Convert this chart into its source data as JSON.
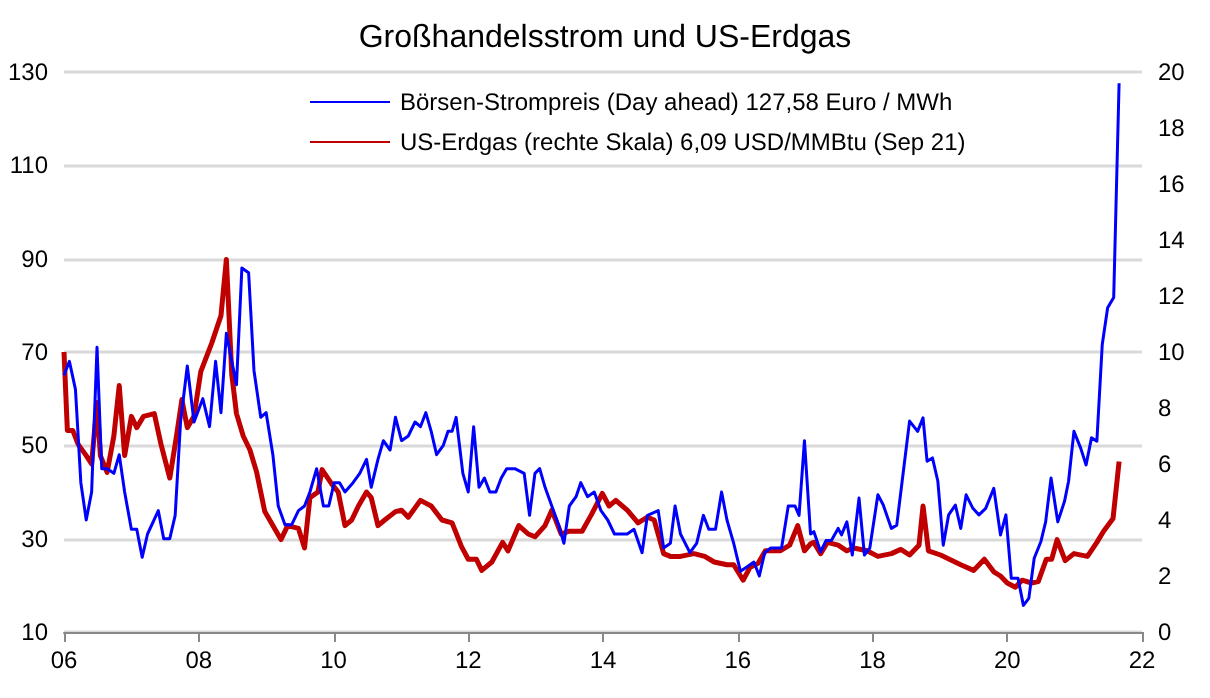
{
  "chart_data": {
    "type": "line",
    "title": "Großhandelsstrom und US-Erdgas",
    "xlim": [
      2006,
      2022
    ],
    "xticks": [
      {
        "value": 2006,
        "label": "06"
      },
      {
        "value": 2008,
        "label": "08"
      },
      {
        "value": 2010,
        "label": "10"
      },
      {
        "value": 2012,
        "label": "12"
      },
      {
        "value": 2014,
        "label": "14"
      },
      {
        "value": 2016,
        "label": "16"
      },
      {
        "value": 2018,
        "label": "18"
      },
      {
        "value": 2020,
        "label": "20"
      },
      {
        "value": 2022,
        "label": "22"
      }
    ],
    "ylim": [
      10,
      130
    ],
    "yticks": [
      10,
      30,
      50,
      70,
      90,
      110,
      130
    ],
    "y2lim": [
      0,
      20
    ],
    "y2ticks": [
      0,
      2,
      4,
      6,
      8,
      10,
      12,
      14,
      16,
      18,
      20
    ],
    "grid": "y",
    "legend": "top",
    "marker": "none",
    "line_style": "solid",
    "series": [
      {
        "name": "Börsen-Strompreis (Day ahead) 127,58 Euro / MWh",
        "color": "#0000ff",
        "x": [
          2006.0,
          2006.08,
          2006.17,
          2006.25,
          2006.33,
          2006.41,
          2006.49,
          2006.56,
          2006.64,
          2006.74,
          2006.82,
          2006.9,
          2007.0,
          2007.08,
          2007.16,
          2007.24,
          2007.4,
          2007.48,
          2007.57,
          2007.65,
          2007.73,
          2007.83,
          2007.93,
          2008.06,
          2008.16,
          2008.25,
          2008.33,
          2008.41,
          2008.49,
          2008.56,
          2008.64,
          2008.74,
          2008.82,
          2008.92,
          2009.0,
          2009.1,
          2009.18,
          2009.28,
          2009.38,
          2009.48,
          2009.57,
          2009.65,
          2009.75,
          2009.85,
          2009.93,
          2010.01,
          2010.09,
          2010.17,
          2010.29,
          2010.39,
          2010.49,
          2010.56,
          2010.66,
          2010.74,
          2010.84,
          2010.92,
          2011.01,
          2011.11,
          2011.21,
          2011.29,
          2011.37,
          2011.45,
          2011.53,
          2011.63,
          2011.7,
          2011.76,
          2011.82,
          2011.92,
          2012.0,
          2012.08,
          2012.16,
          2012.24,
          2012.32,
          2012.41,
          2012.49,
          2012.57,
          2012.69,
          2012.83,
          2012.91,
          2012.99,
          2013.06,
          2013.14,
          2013.24,
          2013.34,
          2013.42,
          2013.5,
          2013.6,
          2013.67,
          2013.77,
          2013.87,
          2013.97,
          2014.07,
          2014.17,
          2014.27,
          2014.36,
          2014.46,
          2014.58,
          2014.66,
          2014.82,
          2014.9,
          2015.0,
          2015.07,
          2015.15,
          2015.29,
          2015.39,
          2015.49,
          2015.57,
          2015.67,
          2015.76,
          2015.84,
          2015.94,
          2016.04,
          2016.14,
          2016.24,
          2016.32,
          2016.4,
          2016.49,
          2016.65,
          2016.75,
          2016.85,
          2016.91,
          2016.99,
          2017.08,
          2017.13,
          2017.23,
          2017.31,
          2017.39,
          2017.49,
          2017.54,
          2017.62,
          2017.7,
          2017.8,
          2017.88,
          2017.96,
          2018.08,
          2018.16,
          2018.28,
          2018.36,
          2018.44,
          2018.55,
          2018.67,
          2018.75,
          2018.81,
          2018.89,
          2018.97,
          2019.05,
          2019.13,
          2019.23,
          2019.31,
          2019.39,
          2019.49,
          2019.58,
          2019.68,
          2019.8,
          2019.9,
          2019.98,
          2020.06,
          2020.16,
          2020.24,
          2020.32,
          2020.4,
          2020.5,
          2020.57,
          2020.65,
          2020.75,
          2020.85,
          2020.91,
          2020.99,
          2021.09,
          2021.17,
          2021.25,
          2021.33,
          2021.41,
          2021.49,
          2021.58,
          2021.66
        ],
        "values": [
          65,
          68,
          62,
          42,
          34,
          40,
          71,
          45,
          45,
          44,
          48,
          40,
          32,
          32,
          26,
          31,
          36,
          30,
          30,
          35,
          55,
          67,
          55,
          60,
          54,
          68,
          57,
          74,
          68,
          63,
          88,
          87,
          66,
          56,
          57,
          48,
          37,
          33,
          33,
          36,
          37,
          40,
          45,
          37,
          37,
          42,
          42,
          40,
          42,
          44,
          47,
          41,
          47,
          51,
          49,
          56,
          51,
          52,
          55,
          54,
          57,
          53,
          48,
          50,
          53,
          53,
          56,
          44,
          40,
          54,
          41,
          43,
          40,
          40,
          43,
          45,
          45,
          44,
          35,
          44,
          45,
          41,
          37,
          33,
          29,
          37,
          39,
          42,
          39,
          40,
          36,
          34,
          31,
          31,
          31,
          32,
          27,
          35,
          36,
          28,
          29,
          37,
          31,
          27,
          29,
          35,
          32,
          32,
          40,
          34,
          29,
          23,
          24,
          25,
          22,
          27,
          28,
          28,
          37,
          37,
          35,
          51,
          31,
          31.5,
          27.2,
          29.6,
          29.6,
          32.2,
          30.8,
          33.6,
          26.5,
          38.7,
          26.5,
          28,
          39.4,
          37.2,
          32.2,
          32.9,
          42.3,
          55.2,
          53,
          55.9,
          46.6,
          47.3,
          42.3,
          28.6,
          35.1,
          37.2,
          32.2,
          39.4,
          36.5,
          35.1,
          36.5,
          40.8,
          30.8,
          35.1,
          21.5,
          21.5,
          15.7,
          17.2,
          25.8,
          29.4,
          33.6,
          43,
          33.6,
          38,
          42.3,
          53,
          49.4,
          45.8,
          51.6,
          50.9,
          71.6,
          79.5,
          81.7,
          127.58
        ]
      },
      {
        "name": "US-Erdgas (rechte Skala) 6,09 USD/MMBtu (Sep 21)",
        "color": "#c00000",
        "axis": "y2",
        "x": [
          2006.0,
          2006.05,
          2006.13,
          2006.21,
          2006.33,
          2006.41,
          2006.49,
          2006.54,
          2006.64,
          2006.74,
          2006.82,
          2006.9,
          2007.0,
          2007.08,
          2007.18,
          2007.34,
          2007.44,
          2007.57,
          2007.67,
          2007.75,
          2007.83,
          2007.93,
          2008.03,
          2008.19,
          2008.33,
          2008.41,
          2008.49,
          2008.56,
          2008.66,
          2008.76,
          2008.86,
          2008.98,
          2009.1,
          2009.22,
          2009.32,
          2009.48,
          2009.57,
          2009.65,
          2009.77,
          2009.83,
          2009.97,
          2010.07,
          2010.17,
          2010.27,
          2010.37,
          2010.49,
          2010.56,
          2010.66,
          2010.76,
          2010.92,
          2011.01,
          2011.11,
          2011.29,
          2011.45,
          2011.61,
          2011.76,
          2011.9,
          2012.0,
          2012.12,
          2012.2,
          2012.35,
          2012.51,
          2012.59,
          2012.75,
          2012.89,
          2012.99,
          2013.14,
          2013.24,
          2013.38,
          2013.5,
          2013.69,
          2013.83,
          2013.99,
          2014.09,
          2014.19,
          2014.36,
          2014.52,
          2014.66,
          2014.76,
          2014.9,
          2015.0,
          2015.15,
          2015.35,
          2015.51,
          2015.65,
          2015.84,
          2015.94,
          2016.08,
          2016.18,
          2016.3,
          2016.41,
          2016.63,
          2016.77,
          2016.89,
          2016.99,
          2017.08,
          2017.13,
          2017.23,
          2017.33,
          2017.49,
          2017.62,
          2017.72,
          2017.92,
          2018.08,
          2018.28,
          2018.42,
          2018.55,
          2018.69,
          2018.75,
          2018.83,
          2019.01,
          2019.31,
          2019.5,
          2019.66,
          2019.8,
          2019.9,
          2020.0,
          2020.12,
          2020.22,
          2020.36,
          2020.46,
          2020.58,
          2020.66,
          2020.74,
          2020.86,
          2020.99,
          2021.19,
          2021.33,
          2021.43,
          2021.57,
          2021.66
        ],
        "values": [
          10,
          7.2,
          7.2,
          6.7,
          6.3,
          6,
          8.2,
          6.3,
          5.7,
          7,
          8.8,
          6.3,
          7.7,
          7.3,
          7.7,
          7.8,
          6.7,
          5.5,
          7,
          8.3,
          7.3,
          7.7,
          9.3,
          10.3,
          11.3,
          13.3,
          9.2,
          7.8,
          7,
          6.5,
          5.7,
          4.3,
          3.8,
          3.3,
          3.8,
          3.7,
          3,
          4.8,
          5,
          5.8,
          5.3,
          5,
          3.8,
          4,
          4.5,
          5,
          4.8,
          3.8,
          4,
          4.3,
          4.35,
          4.1,
          4.7,
          4.5,
          4,
          3.9,
          3.05,
          2.6,
          2.6,
          2.2,
          2.5,
          3.2,
          2.9,
          3.8,
          3.5,
          3.4,
          3.8,
          4.35,
          3.5,
          3.6,
          3.6,
          4.2,
          4.95,
          4.5,
          4.7,
          4.35,
          3.9,
          4.1,
          4,
          2.8,
          2.7,
          2.7,
          2.8,
          2.7,
          2.5,
          2.4,
          2.4,
          1.85,
          2.3,
          2.45,
          2.9,
          2.9,
          3.1,
          3.8,
          2.9,
          3.15,
          3.2,
          2.8,
          3.2,
          3.1,
          2.9,
          3,
          2.9,
          2.7,
          2.8,
          2.95,
          2.75,
          3.1,
          4.5,
          2.9,
          2.75,
          2.4,
          2.2,
          2.6,
          2.15,
          2,
          1.75,
          1.6,
          1.85,
          1.75,
          1.8,
          2.6,
          2.6,
          3.3,
          2.55,
          2.8,
          2.7,
          3.2,
          3.6,
          4.05,
          6.09
        ]
      }
    ]
  }
}
